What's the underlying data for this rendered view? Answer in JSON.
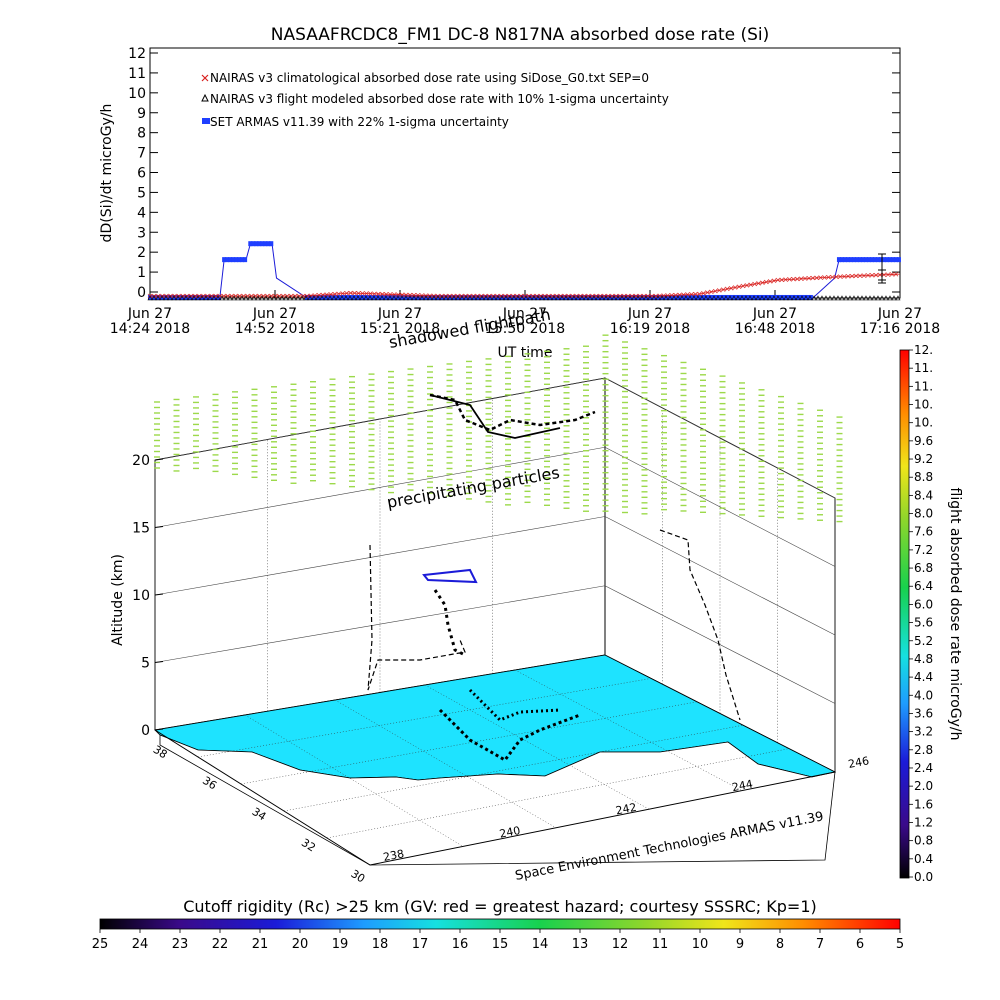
{
  "title": "NASAAFRCDC8_FM1 DC-8   N817NA absorbed dose rate (Si)",
  "top_chart": {
    "ylabel": "dD(Si)/dt microGy/h",
    "xlabel": "UT time",
    "yticks": [
      "0",
      "1",
      "2",
      "3",
      "4",
      "5",
      "6",
      "7",
      "8",
      "9",
      "10",
      "11",
      "12"
    ],
    "xticks": [
      {
        "line1": "Jun 27",
        "line2": "14:24 2018"
      },
      {
        "line1": "Jun 27",
        "line2": "14:52 2018"
      },
      {
        "line1": "Jun 27",
        "line2": "15:21 2018"
      },
      {
        "line1": "Jun 27",
        "line2": "15:50 2018"
      },
      {
        "line1": "Jun 27",
        "line2": "16:19 2018"
      },
      {
        "line1": "Jun 27",
        "line2": "16:48 2018"
      },
      {
        "line1": "Jun 27",
        "line2": "17:16 2018"
      }
    ],
    "legend": [
      {
        "label": "NAIRAS v3 climatological absorbed dose rate using SiDose_G0.txt SEP=0",
        "symbol": "x",
        "color": "#d9201e"
      },
      {
        "label": "NAIRAS v3 flight modeled absorbed dose rate with 10% 1-sigma uncertainty",
        "symbol": "triangle",
        "color": "#000000"
      },
      {
        "label": "SET ARMAS v11.39 with 22% 1-sigma uncertainty",
        "symbol": "square",
        "color": "#1f3fff"
      }
    ]
  },
  "chart_data": {
    "type": "line",
    "title": "NASAAFRCDC8_FM1 DC-8   N817NA absorbed dose rate (Si)",
    "xlabel": "UT time",
    "ylabel": "dD(Si)/dt microGy/h",
    "ylim": [
      0,
      12
    ],
    "xlim": [
      "14:24",
      "17:16"
    ],
    "series": [
      {
        "name": "SET ARMAS v11.39 with 22% 1-sigma uncertainty",
        "x": [
          "14:24",
          "14:40",
          "14:41",
          "14:46",
          "14:47",
          "14:52",
          "14:53",
          "15:00",
          "15:30",
          "16:00",
          "16:30",
          "16:48",
          "16:56",
          "17:01",
          "17:02",
          "17:16"
        ],
        "y": [
          -0.3,
          -0.3,
          1.6,
          1.6,
          2.4,
          2.4,
          0.7,
          -0.3,
          -0.3,
          -0.3,
          -0.3,
          -0.3,
          -0.3,
          0.7,
          1.6,
          1.6
        ]
      },
      {
        "name": "NAIRAS v3 climatological absorbed dose rate using SiDose_G0.txt SEP=0",
        "x": [
          "14:24",
          "14:40",
          "15:00",
          "15:10",
          "15:30",
          "16:00",
          "16:20",
          "16:30",
          "16:40",
          "16:48",
          "16:56",
          "17:05",
          "17:16"
        ],
        "y": [
          -0.2,
          -0.2,
          -0.2,
          -0.05,
          -0.2,
          -0.2,
          -0.2,
          -0.1,
          0.3,
          0.6,
          0.7,
          0.8,
          0.9
        ]
      },
      {
        "name": "NAIRAS v3 flight modeled absorbed dose rate with 10% 1-sigma uncertainty",
        "x": [
          "14:24",
          "15:00",
          "15:30",
          "16:00",
          "16:30",
          "17:00",
          "17:16"
        ],
        "y": [
          -0.3,
          -0.3,
          -0.3,
          -0.3,
          -0.3,
          -0.3,
          -0.3
        ]
      }
    ]
  },
  "scene": {
    "ylabel": "Altitude (km)",
    "altitude_ticks": [
      "0",
      "5",
      "10",
      "15",
      "20"
    ],
    "lat_ticks": [
      "38",
      "36",
      "34",
      "32",
      "30"
    ],
    "lon_ticks": [
      "238",
      "240",
      "242",
      "244",
      "246"
    ],
    "annotations": [
      "shadowed flightpath",
      "precipitating particles"
    ],
    "credit": "Space Environment Technologies ARMAS v11.39"
  },
  "colorbar": {
    "label": "flight absorbed dose rate microGy/h",
    "ticks": [
      "0.0",
      "0.4",
      "0.8",
      "1.2",
      "1.6",
      "2.0",
      "2.4",
      "2.8",
      "3.2",
      "3.6",
      "4.0",
      "4.4",
      "4.8",
      "5.2",
      "5.6",
      "6.0",
      "6.4",
      "6.8",
      "7.2",
      "7.6",
      "8.0",
      "8.4",
      "8.8",
      "9.2",
      "9.6",
      "10.",
      "10.",
      "11.",
      "11.",
      "12."
    ]
  },
  "bottom_bar": {
    "title": "Cutoff rigidity (Rc) >25 km (GV: red = greatest hazard; courtesy SSSRC; Kp=1)",
    "ticks": [
      "25",
      "24",
      "23",
      "22",
      "21",
      "20",
      "19",
      "18",
      "17",
      "16",
      "15",
      "14",
      "13",
      "12",
      "11",
      "10",
      "9",
      "8",
      "7",
      "6",
      "5"
    ]
  },
  "colors": {
    "ocean": "#1ee3ff",
    "precip_particles": "#9cd94a",
    "armas": "#1f3fff",
    "nairas_clim": "#d9201e"
  }
}
